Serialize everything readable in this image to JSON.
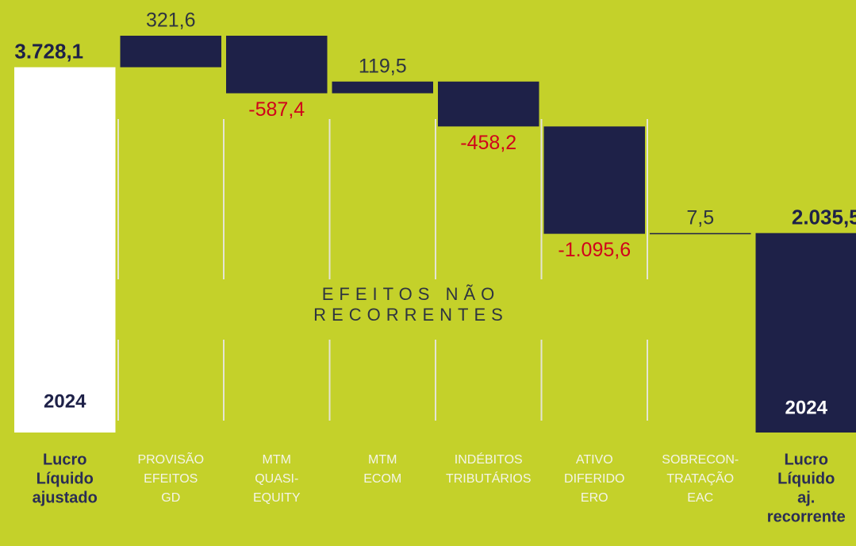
{
  "chart_data": {
    "type": "waterfall",
    "categories": [
      [
        "Lucro",
        "Líquido",
        "ajustado"
      ],
      [
        "PROVISÃO",
        "EFEITOS",
        "GD"
      ],
      [
        "MTM",
        "QUASI-",
        "EQUITY"
      ],
      [
        "MTM",
        "ECOM"
      ],
      [
        "INDÉBITOS",
        "TRIBUTÁRIOS"
      ],
      [
        "ATIVO",
        "DIFERIDO",
        "ERO"
      ],
      [
        "SOBRECON-",
        "TRATAÇÃO",
        "EAC"
      ],
      [
        "Lucro",
        "Líquido",
        "aj.",
        "recorrente"
      ]
    ],
    "measures": [
      "total",
      "relative",
      "relative",
      "relative",
      "relative",
      "relative",
      "relative",
      "total"
    ],
    "values": [
      3728.1,
      321.6,
      -587.4,
      119.5,
      -458.2,
      -1095.6,
      7.5,
      2035.5
    ],
    "value_labels": [
      "3.728,1",
      "321,6",
      "-587,4",
      "119,5",
      "-458,2",
      "-1.095,6",
      "7,5",
      "2.035,5"
    ],
    "colors": [
      "#ffffff",
      "#1e2148",
      "#1e2148",
      "#1e2148",
      "#1e2148",
      "#1e2148",
      "#1e2148",
      "#1e2148"
    ],
    "annotations": [
      "2024",
      "2024",
      "EFEITOS NÃO",
      "RECORRENTES"
    ]
  }
}
